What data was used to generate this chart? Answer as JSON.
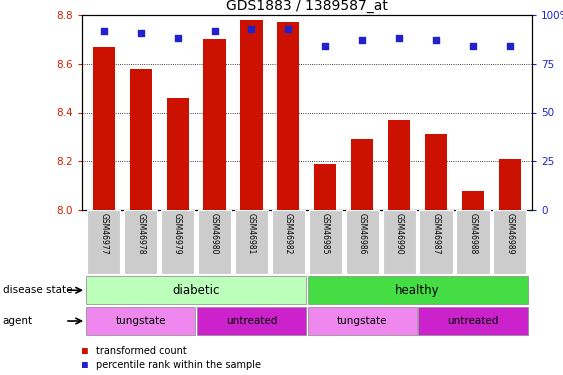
{
  "title": "GDS1883 / 1389587_at",
  "samples": [
    "GSM46977",
    "GSM46978",
    "GSM46979",
    "GSM46980",
    "GSM46981",
    "GSM46982",
    "GSM46985",
    "GSM46986",
    "GSM46990",
    "GSM46987",
    "GSM46988",
    "GSM46989"
  ],
  "bar_values": [
    8.67,
    8.58,
    8.46,
    8.7,
    8.78,
    8.77,
    8.19,
    8.29,
    8.37,
    8.31,
    8.08,
    8.21
  ],
  "dot_values": [
    92,
    91,
    88,
    92,
    93,
    93,
    84,
    87,
    88,
    87,
    84,
    84
  ],
  "y_min": 8.0,
  "y_max": 8.8,
  "y_ticks": [
    8.0,
    8.2,
    8.4,
    8.6,
    8.8
  ],
  "y2_ticks": [
    0,
    25,
    50,
    75,
    100
  ],
  "bar_color": "#cc1100",
  "dot_color": "#2222cc",
  "grid_color": "#000000",
  "disease_color_diabetic": "#bbffbb",
  "disease_color_healthy": "#44dd44",
  "agent_color_tungstate": "#ee88ee",
  "agent_color_untreated": "#cc22cc",
  "sample_bg_color": "#cccccc",
  "disease_label": "disease state",
  "agent_label": "agent",
  "ytick_color_left": "#cc2200",
  "ytick_color_right": "#2222cc",
  "legend_label_bar": "transformed count",
  "legend_label_dot": "percentile rank within the sample",
  "agent_ranges": [
    {
      "label": "tungstate",
      "start": 0,
      "end": 2
    },
    {
      "label": "untreated",
      "start": 3,
      "end": 5
    },
    {
      "label": "tungstate",
      "start": 6,
      "end": 8
    },
    {
      "label": "untreated",
      "start": 9,
      "end": 11
    }
  ]
}
